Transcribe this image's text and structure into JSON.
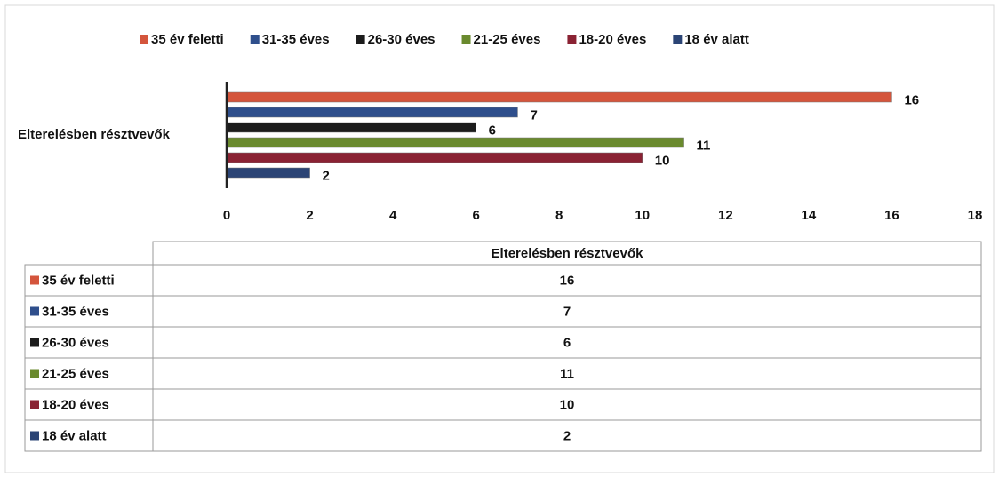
{
  "chart_data": {
    "type": "bar",
    "orientation": "horizontal",
    "categories": [
      "Elterelésben résztvevők"
    ],
    "series": [
      {
        "name": "35 év feletti",
        "color": "#d4553c",
        "values": [
          16
        ]
      },
      {
        "name": "31-35 éves",
        "color": "#2f4f8c",
        "values": [
          7
        ]
      },
      {
        "name": "26-30 éves",
        "color": "#1c1c1c",
        "values": [
          6
        ]
      },
      {
        "name": "21-25 éves",
        "color": "#6a8a2e",
        "values": [
          11
        ]
      },
      {
        "name": "18-20 éves",
        "color": "#8a2233",
        "values": [
          10
        ]
      },
      {
        "name": "18 év alatt",
        "color": "#2b4475",
        "values": [
          2
        ]
      }
    ],
    "xlim": [
      0,
      18
    ],
    "xticks": [
      0,
      2,
      4,
      6,
      8,
      10,
      12,
      14,
      16,
      18
    ],
    "legend": "top",
    "data_table": true
  }
}
